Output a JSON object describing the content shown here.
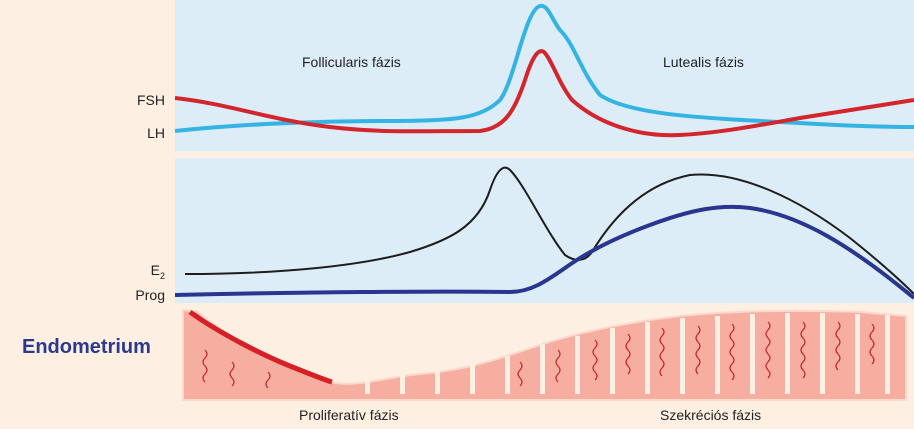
{
  "top_panel": {
    "phase_left": "Follicularis fázis",
    "phase_right": "Lutealis fázis",
    "fsh_label": "FSH",
    "lh_label": "LH"
  },
  "middle_panel": {
    "e2_label_main": "E",
    "e2_label_sub": "2",
    "prog_label": "Prog"
  },
  "endometrium": {
    "title": "Endometrium",
    "phase_left": "Proliferatív fázis",
    "phase_right": "Szekréciós fázis"
  },
  "colors": {
    "panel_bg": "#dcedf8",
    "page_bg": "#fdf0e2",
    "fsh": "#d3262c",
    "lh": "#35b4e4",
    "e2": "#1d1d1d",
    "prog": "#2a3590",
    "tissue": "#f5aea0",
    "tissue_edge": "#fbd7cc",
    "bleed": "#d61f26",
    "gland": "#c8282f",
    "endo_title": "#2b3a8c"
  }
}
